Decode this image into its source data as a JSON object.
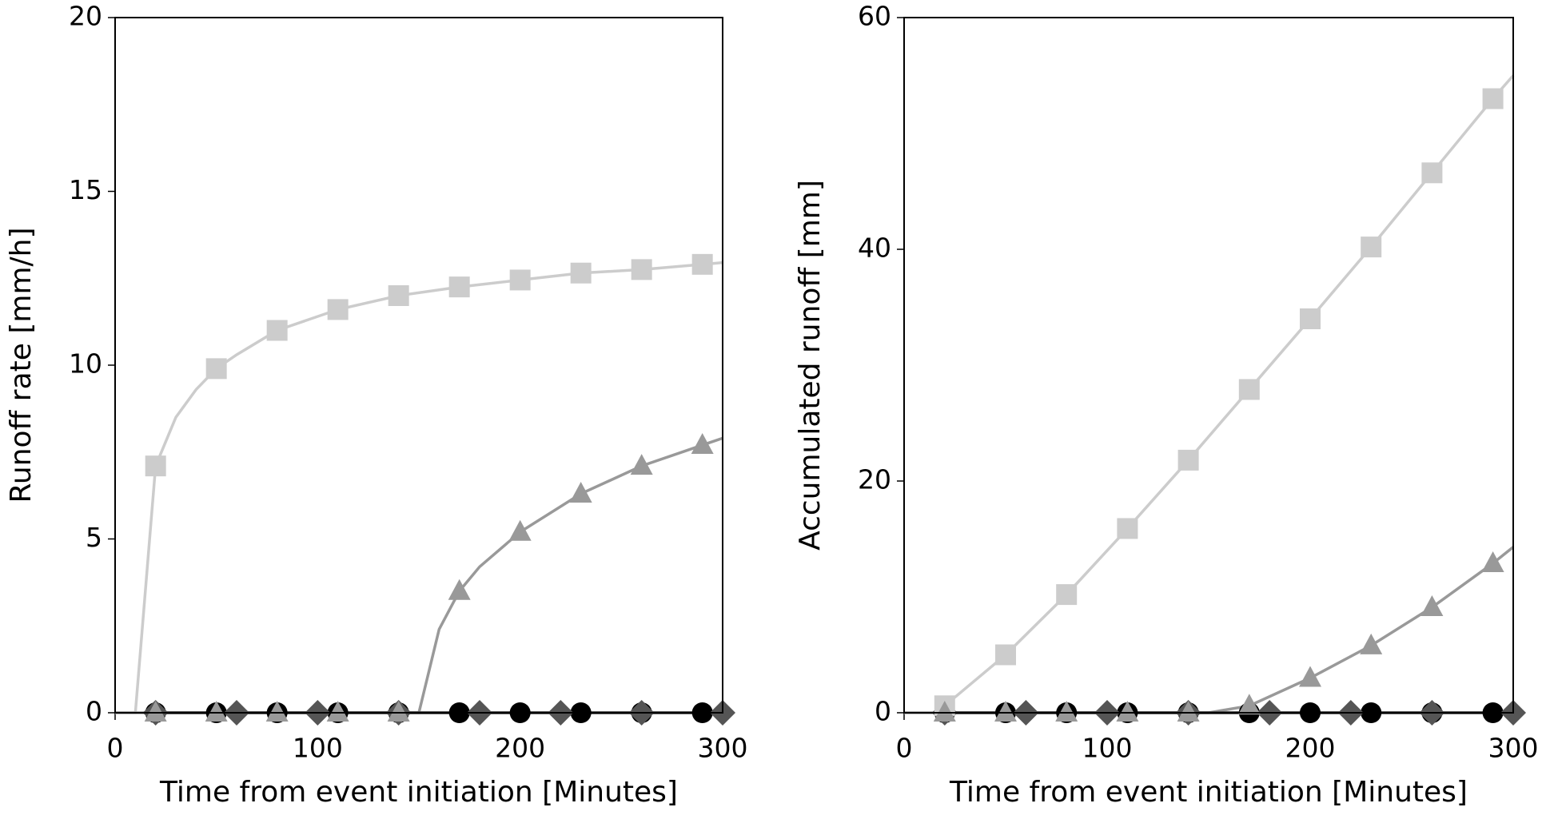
{
  "chart_data": [
    {
      "type": "line",
      "y_label": "Runoff rate [mm/h]",
      "x_label": "Time from event initiation [Minutes]",
      "xlim": [
        0,
        300
      ],
      "xticks": [
        0,
        100,
        200,
        300
      ],
      "ylim": [
        0,
        20
      ],
      "yticks": [
        0,
        5,
        10,
        15,
        20
      ],
      "series": [
        {
          "color": "#cccccc",
          "marker": "none",
          "line": true,
          "x": [
            0,
            10,
            20,
            30,
            40,
            50,
            60,
            80,
            110,
            140,
            170,
            200,
            230,
            260,
            290,
            300
          ],
          "values": [
            0,
            0,
            7.1,
            8.5,
            9.3,
            9.9,
            10.3,
            11.0,
            11.6,
            12.0,
            12.25,
            12.45,
            12.65,
            12.75,
            12.9,
            12.95
          ]
        },
        {
          "color": "#999999",
          "marker": "none",
          "line": true,
          "x": [
            0,
            150,
            160,
            170,
            180,
            200,
            230,
            260,
            290,
            300
          ],
          "values": [
            0,
            0,
            2.4,
            3.5,
            4.2,
            5.2,
            6.3,
            7.1,
            7.7,
            7.9
          ]
        },
        {
          "color": "#000000",
          "marker": "circle",
          "line": true,
          "x": [
            20,
            50,
            80,
            110,
            140,
            170,
            200,
            230,
            260,
            290
          ],
          "values": [
            0,
            0,
            0,
            0,
            0,
            0,
            0,
            0,
            0,
            0
          ]
        },
        {
          "color": "#555555",
          "marker": "diamond",
          "line": true,
          "x": [
            20,
            60,
            100,
            140,
            180,
            220,
            260,
            300
          ],
          "values": [
            0,
            0,
            0,
            0,
            0,
            0,
            0,
            0
          ]
        },
        {
          "color": "#cccccc",
          "marker": "square",
          "line": false,
          "x": [
            20,
            50,
            80,
            110,
            140,
            170,
            200,
            230,
            260,
            290
          ],
          "values": [
            7.1,
            9.9,
            11.0,
            11.6,
            12.0,
            12.25,
            12.45,
            12.65,
            12.75,
            12.9
          ]
        },
        {
          "color": "#999999",
          "marker": "triangle",
          "line": false,
          "x": [
            20,
            50,
            80,
            110,
            140,
            170,
            200,
            230,
            260,
            290
          ],
          "values": [
            0,
            0,
            0,
            0,
            0,
            3.5,
            5.2,
            6.3,
            7.1,
            7.7
          ]
        }
      ]
    },
    {
      "type": "line",
      "y_label": "Accumulated runoff [mm]",
      "x_label": "Time from event initiation [Minutes]",
      "xlim": [
        0,
        300
      ],
      "xticks": [
        0,
        100,
        200,
        300
      ],
      "ylim": [
        0,
        60
      ],
      "yticks": [
        0,
        20,
        40,
        60
      ],
      "series": [
        {
          "color": "#cccccc",
          "marker": "none",
          "line": true,
          "x": [
            20,
            50,
            80,
            110,
            140,
            170,
            200,
            230,
            260,
            290,
            300
          ],
          "values": [
            0.6,
            5,
            10.2,
            15.9,
            21.8,
            27.9,
            34,
            40.2,
            46.6,
            53,
            55
          ]
        },
        {
          "color": "#999999",
          "marker": "none",
          "line": true,
          "x": [
            0,
            150,
            170,
            200,
            230,
            260,
            290,
            300
          ],
          "values": [
            0,
            0,
            0.6,
            3,
            5.8,
            9.1,
            12.9,
            14.3
          ]
        },
        {
          "color": "#000000",
          "marker": "circle",
          "line": true,
          "x": [
            20,
            50,
            80,
            110,
            140,
            170,
            200,
            230,
            260,
            290
          ],
          "values": [
            0,
            0,
            0,
            0,
            0,
            0,
            0,
            0,
            0,
            0
          ]
        },
        {
          "color": "#555555",
          "marker": "diamond",
          "line": true,
          "x": [
            20,
            60,
            100,
            140,
            180,
            220,
            260,
            300
          ],
          "values": [
            0,
            0,
            0,
            0,
            0,
            0,
            0,
            0
          ]
        },
        {
          "color": "#cccccc",
          "marker": "square",
          "line": false,
          "x": [
            20,
            50,
            80,
            110,
            140,
            170,
            200,
            230,
            260,
            290
          ],
          "values": [
            0.6,
            5,
            10.2,
            15.9,
            21.8,
            27.9,
            34,
            40.2,
            46.6,
            53
          ]
        },
        {
          "color": "#999999",
          "marker": "triangle",
          "line": false,
          "x": [
            20,
            50,
            80,
            110,
            140,
            170,
            200,
            230,
            260,
            290
          ],
          "values": [
            0,
            0,
            0,
            0,
            0,
            0.6,
            3,
            5.8,
            9.1,
            12.9
          ]
        }
      ]
    }
  ]
}
